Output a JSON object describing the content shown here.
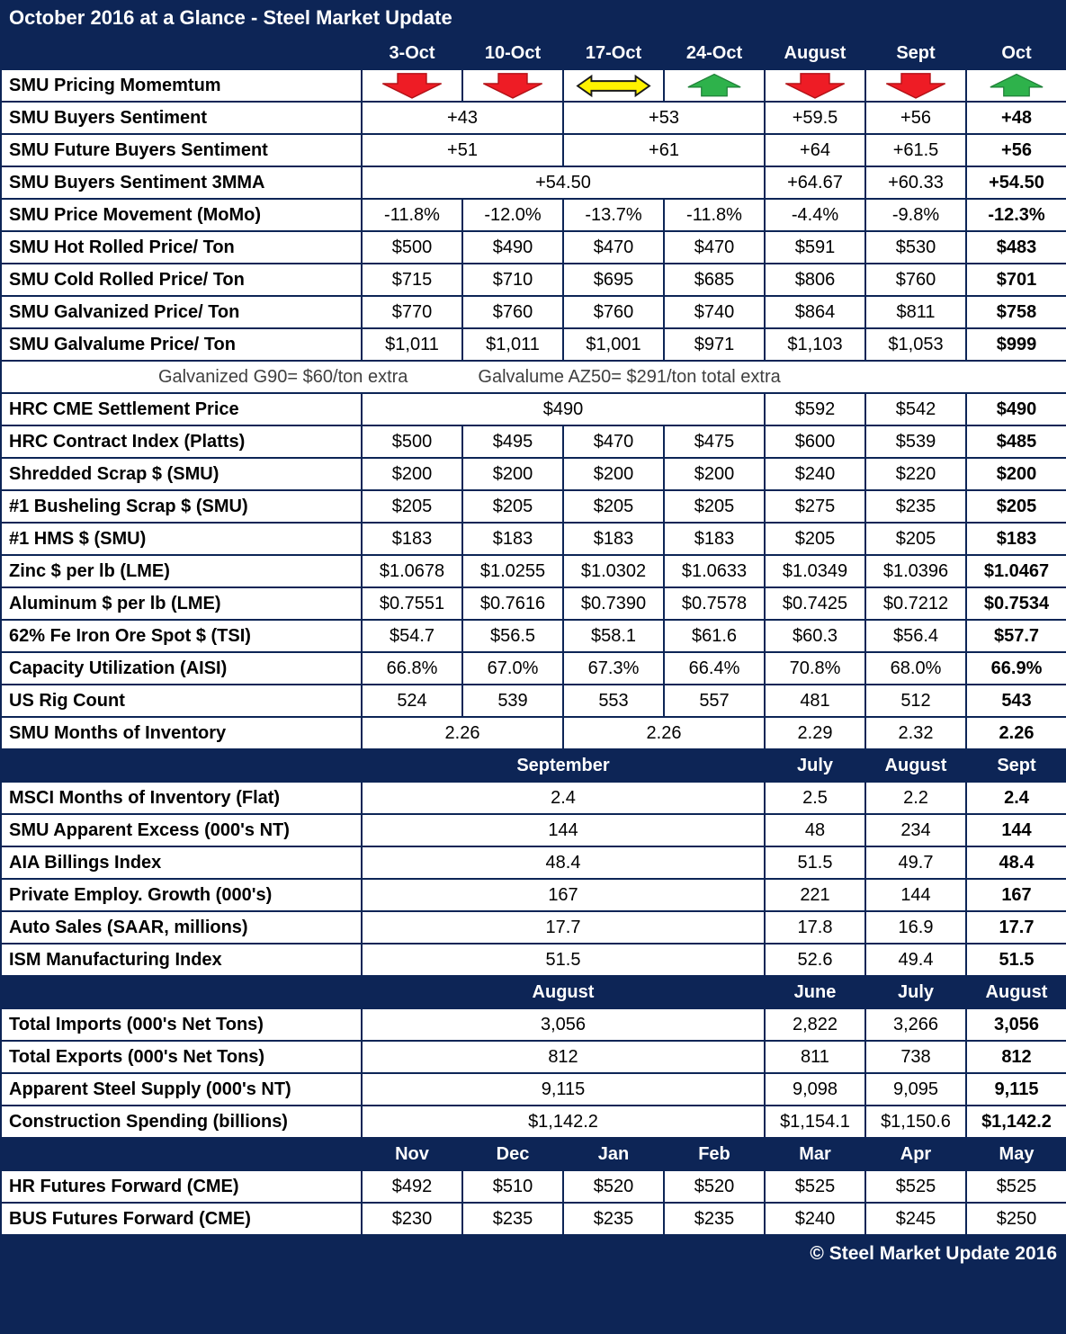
{
  "title": "October 2016 at a Glance - Steel Market Update",
  "footer": "© Steel Market Update 2016",
  "colors": {
    "navy": "#0d2556",
    "cell_bg": "#ffffff",
    "text": "#000000",
    "note_text": "#3f3f3f",
    "red_arrow": "#ee1c25",
    "red_arrow_edge": "#b31217",
    "green_arrow": "#2eb24b",
    "green_arrow_edge": "#1f8038",
    "yellow_arrow": "#fff200",
    "yellow_arrow_edge": "#1a1a1a"
  },
  "chart_data": {
    "type": "table",
    "title": "October 2016 at a Glance - Steel Market Update",
    "sections": [
      {
        "header": [
          {
            "text": "3-Oct"
          },
          {
            "text": "10-Oct"
          },
          {
            "text": "17-Oct"
          },
          {
            "text": "24-Oct"
          },
          {
            "text": "August"
          },
          {
            "text": "Sept"
          },
          {
            "text": "Oct"
          }
        ],
        "rows": [
          {
            "type": "icons",
            "label": "SMU Pricing Momemtum",
            "icons": [
              "red-down-arrow",
              "red-down-arrow",
              "yellow-left-right-arrow",
              "green-up-arrow",
              "red-down-arrow",
              "red-down-arrow",
              "green-up-arrow"
            ]
          },
          {
            "label": "SMU Buyers Sentiment",
            "cells": [
              {
                "text": "+43",
                "span": 2
              },
              {
                "text": "+53",
                "span": 2
              },
              {
                "text": "+59.5"
              },
              {
                "text": "+56"
              },
              {
                "text": "+48",
                "bold": true
              }
            ]
          },
          {
            "label": "SMU Future Buyers Sentiment",
            "cells": [
              {
                "text": "+51",
                "span": 2
              },
              {
                "text": "+61",
                "span": 2
              },
              {
                "text": "+64"
              },
              {
                "text": "+61.5"
              },
              {
                "text": "+56",
                "bold": true
              }
            ]
          },
          {
            "label": "SMU Buyers Sentiment 3MMA",
            "cells": [
              {
                "text": "+54.50",
                "span": 4
              },
              {
                "text": "+64.67"
              },
              {
                "text": "+60.33"
              },
              {
                "text": "+54.50",
                "bold": true
              }
            ]
          },
          {
            "label": "SMU Price Movement (MoMo)",
            "cells": [
              {
                "text": "-11.8%"
              },
              {
                "text": "-12.0%"
              },
              {
                "text": "-13.7%"
              },
              {
                "text": "-11.8%"
              },
              {
                "text": "-4.4%"
              },
              {
                "text": "-9.8%"
              },
              {
                "text": "-12.3%",
                "bold": true
              }
            ]
          },
          {
            "label": "SMU Hot Rolled Price/ Ton",
            "cells": [
              {
                "text": "$500"
              },
              {
                "text": "$490"
              },
              {
                "text": "$470"
              },
              {
                "text": "$470"
              },
              {
                "text": "$591"
              },
              {
                "text": "$530"
              },
              {
                "text": "$483",
                "bold": true
              }
            ]
          },
          {
            "label": "SMU Cold Rolled Price/ Ton",
            "cells": [
              {
                "text": "$715"
              },
              {
                "text": "$710"
              },
              {
                "text": "$695"
              },
              {
                "text": "$685"
              },
              {
                "text": "$806"
              },
              {
                "text": "$760"
              },
              {
                "text": "$701",
                "bold": true
              }
            ]
          },
          {
            "label": "SMU Galvanized Price/ Ton",
            "cells": [
              {
                "text": "$770"
              },
              {
                "text": "$760"
              },
              {
                "text": "$760"
              },
              {
                "text": "$740"
              },
              {
                "text": "$864"
              },
              {
                "text": "$811"
              },
              {
                "text": "$758",
                "bold": true
              }
            ]
          },
          {
            "label": "SMU Galvalume Price/ Ton",
            "cells": [
              {
                "text": "$1,011"
              },
              {
                "text": "$1,011"
              },
              {
                "text": "$1,001"
              },
              {
                "text": "$971"
              },
              {
                "text": "$1,103"
              },
              {
                "text": "$1,053"
              },
              {
                "text": "$999",
                "bold": true
              }
            ]
          },
          {
            "type": "note",
            "left": "Galvanized G90= $60/ton extra",
            "right": "Galvalume AZ50= $291/ton total extra"
          },
          {
            "label": "HRC CME Settlement Price",
            "cells": [
              {
                "text": "$490",
                "span": 4
              },
              {
                "text": "$592"
              },
              {
                "text": "$542"
              },
              {
                "text": "$490",
                "bold": true
              }
            ]
          },
          {
            "label": "HRC Contract Index (Platts)",
            "cells": [
              {
                "text": "$500"
              },
              {
                "text": "$495"
              },
              {
                "text": "$470"
              },
              {
                "text": "$475"
              },
              {
                "text": "$600"
              },
              {
                "text": "$539"
              },
              {
                "text": "$485",
                "bold": true
              }
            ]
          },
          {
            "label": "Shredded Scrap $ (SMU)",
            "cells": [
              {
                "text": "$200"
              },
              {
                "text": "$200"
              },
              {
                "text": "$200"
              },
              {
                "text": "$200"
              },
              {
                "text": "$240"
              },
              {
                "text": "$220"
              },
              {
                "text": "$200",
                "bold": true
              }
            ]
          },
          {
            "label": "#1 Busheling Scrap $ (SMU)",
            "cells": [
              {
                "text": "$205"
              },
              {
                "text": "$205"
              },
              {
                "text": "$205"
              },
              {
                "text": "$205"
              },
              {
                "text": "$275"
              },
              {
                "text": "$235"
              },
              {
                "text": "$205",
                "bold": true
              }
            ]
          },
          {
            "label": "#1 HMS $ (SMU)",
            "cells": [
              {
                "text": "$183"
              },
              {
                "text": "$183"
              },
              {
                "text": "$183"
              },
              {
                "text": "$183"
              },
              {
                "text": "$205"
              },
              {
                "text": "$205"
              },
              {
                "text": "$183",
                "bold": true
              }
            ]
          },
          {
            "label": "Zinc $ per lb (LME)",
            "cells": [
              {
                "text": "$1.0678"
              },
              {
                "text": "$1.0255"
              },
              {
                "text": "$1.0302"
              },
              {
                "text": "$1.0633"
              },
              {
                "text": "$1.0349"
              },
              {
                "text": "$1.0396"
              },
              {
                "text": "$1.0467",
                "bold": true
              }
            ]
          },
          {
            "label": "Aluminum $ per lb (LME)",
            "cells": [
              {
                "text": "$0.7551"
              },
              {
                "text": "$0.7616"
              },
              {
                "text": "$0.7390"
              },
              {
                "text": "$0.7578"
              },
              {
                "text": "$0.7425"
              },
              {
                "text": "$0.7212"
              },
              {
                "text": "$0.7534",
                "bold": true
              }
            ]
          },
          {
            "label": "62% Fe Iron Ore Spot $ (TSI)",
            "cells": [
              {
                "text": "$54.7"
              },
              {
                "text": "$56.5"
              },
              {
                "text": "$58.1"
              },
              {
                "text": "$61.6"
              },
              {
                "text": "$60.3"
              },
              {
                "text": "$56.4"
              },
              {
                "text": "$57.7",
                "bold": true
              }
            ]
          },
          {
            "label": "Capacity Utilization (AISI)",
            "cells": [
              {
                "text": "66.8%"
              },
              {
                "text": "67.0%"
              },
              {
                "text": "67.3%"
              },
              {
                "text": "66.4%"
              },
              {
                "text": "70.8%"
              },
              {
                "text": "68.0%"
              },
              {
                "text": "66.9%",
                "bold": true
              }
            ]
          },
          {
            "label": "US Rig Count",
            "cells": [
              {
                "text": "524"
              },
              {
                "text": "539"
              },
              {
                "text": "553"
              },
              {
                "text": "557"
              },
              {
                "text": "481"
              },
              {
                "text": "512"
              },
              {
                "text": "543",
                "bold": true
              }
            ]
          },
          {
            "label": "SMU Months of Inventory",
            "cells": [
              {
                "text": "2.26",
                "span": 2
              },
              {
                "text": "2.26",
                "span": 2
              },
              {
                "text": "2.29"
              },
              {
                "text": "2.32"
              },
              {
                "text": "2.26",
                "bold": true
              }
            ]
          }
        ]
      },
      {
        "header": [
          {
            "text": "September",
            "span": 4
          },
          {
            "text": "July"
          },
          {
            "text": "August"
          },
          {
            "text": "Sept"
          }
        ],
        "rows": [
          {
            "label": "MSCI Months of Inventory (Flat)",
            "cells": [
              {
                "text": "2.4",
                "span": 4
              },
              {
                "text": "2.5"
              },
              {
                "text": "2.2"
              },
              {
                "text": "2.4",
                "bold": true
              }
            ]
          },
          {
            "label": "SMU Apparent Excess (000's NT)",
            "cells": [
              {
                "text": "144",
                "span": 4
              },
              {
                "text": "48"
              },
              {
                "text": "234"
              },
              {
                "text": "144",
                "bold": true
              }
            ]
          },
          {
            "label": "AIA Billings Index",
            "cells": [
              {
                "text": "48.4",
                "span": 4
              },
              {
                "text": "51.5"
              },
              {
                "text": "49.7"
              },
              {
                "text": "48.4",
                "bold": true
              }
            ]
          },
          {
            "label": "Private Employ. Growth (000's)",
            "cells": [
              {
                "text": "167",
                "span": 4
              },
              {
                "text": "221"
              },
              {
                "text": "144"
              },
              {
                "text": "167",
                "bold": true
              }
            ]
          },
          {
            "label": "Auto Sales (SAAR, millions)",
            "cells": [
              {
                "text": "17.7",
                "span": 4
              },
              {
                "text": "17.8"
              },
              {
                "text": "16.9"
              },
              {
                "text": "17.7",
                "bold": true
              }
            ]
          },
          {
            "label": "ISM Manufacturing Index",
            "cells": [
              {
                "text": "51.5",
                "span": 4
              },
              {
                "text": "52.6"
              },
              {
                "text": "49.4"
              },
              {
                "text": "51.5",
                "bold": true
              }
            ]
          }
        ]
      },
      {
        "header": [
          {
            "text": "August",
            "span": 4
          },
          {
            "text": "June"
          },
          {
            "text": "July"
          },
          {
            "text": "August"
          }
        ],
        "rows": [
          {
            "label": "Total Imports (000's Net Tons)",
            "cells": [
              {
                "text": "3,056",
                "span": 4
              },
              {
                "text": "2,822"
              },
              {
                "text": "3,266"
              },
              {
                "text": "3,056",
                "bold": true
              }
            ]
          },
          {
            "label": "Total Exports (000's Net Tons)",
            "cells": [
              {
                "text": "812",
                "span": 4
              },
              {
                "text": "811"
              },
              {
                "text": "738"
              },
              {
                "text": "812",
                "bold": true
              }
            ]
          },
          {
            "label": "Apparent Steel Supply (000's NT)",
            "cells": [
              {
                "text": "9,115",
                "span": 4
              },
              {
                "text": "9,098"
              },
              {
                "text": "9,095"
              },
              {
                "text": "9,115",
                "bold": true
              }
            ]
          },
          {
            "label": "Construction Spending (billions)",
            "cells": [
              {
                "text": "$1,142.2",
                "span": 4
              },
              {
                "text": "$1,154.1"
              },
              {
                "text": "$1,150.6"
              },
              {
                "text": "$1,142.2",
                "bold": true
              }
            ]
          }
        ]
      },
      {
        "header": [
          {
            "text": "Nov"
          },
          {
            "text": "Dec"
          },
          {
            "text": "Jan"
          },
          {
            "text": "Feb"
          },
          {
            "text": "Mar"
          },
          {
            "text": "Apr"
          },
          {
            "text": "May"
          }
        ],
        "rows": [
          {
            "label": "HR Futures Forward (CME)",
            "cells": [
              {
                "text": "$492"
              },
              {
                "text": "$510"
              },
              {
                "text": "$520"
              },
              {
                "text": "$520"
              },
              {
                "text": "$525"
              },
              {
                "text": "$525"
              },
              {
                "text": "$525"
              }
            ]
          },
          {
            "label": "BUS Futures Forward (CME)",
            "cells": [
              {
                "text": "$230"
              },
              {
                "text": "$235"
              },
              {
                "text": "$235"
              },
              {
                "text": "$235"
              },
              {
                "text": "$240"
              },
              {
                "text": "$245"
              },
              {
                "text": "$250"
              }
            ]
          }
        ]
      }
    ]
  }
}
